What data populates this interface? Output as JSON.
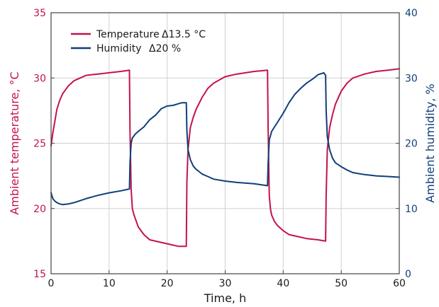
{
  "chart_data": {
    "type": "line",
    "xlabel": "Time, h",
    "ylabel_left": "Ambient temperature, °C",
    "ylabel_right": "Ambient humidity, %",
    "xlim": [
      0,
      60
    ],
    "ylim_left": [
      15,
      35
    ],
    "ylim_right": [
      0,
      40
    ],
    "xticks": [
      "0",
      "10",
      "20",
      "30",
      "40",
      "50",
      "60"
    ],
    "yticks_left": [
      "15",
      "20",
      "25",
      "30",
      "35"
    ],
    "yticks_right": [
      "0",
      "10",
      "20",
      "30",
      "40"
    ],
    "grid": true,
    "legend_position": "top-left",
    "colors": {
      "temperature": "#c4134a",
      "humidity": "#0f3f7a",
      "grid": "#d0d0d0",
      "frame": "#444444"
    },
    "series": [
      {
        "name": "Temperature",
        "delta": "Δ13.5 °C",
        "axis": "left",
        "x": [
          0,
          0.3,
          0.7,
          1,
          1.5,
          2,
          3,
          4,
          5,
          6,
          8,
          10,
          12,
          13.5,
          13.6,
          13.8,
          14,
          14.3,
          14.7,
          15,
          16,
          17,
          18,
          20,
          22,
          23.3,
          23.4,
          23.6,
          24,
          24.5,
          25,
          26,
          27,
          28,
          30,
          32,
          35,
          37.3,
          37.4,
          37.6,
          37.8,
          38,
          38.5,
          39,
          40,
          41,
          42,
          44,
          46,
          47.3,
          47.4,
          47.6,
          48,
          48.5,
          49,
          50,
          51,
          52,
          54,
          56,
          58,
          60
        ],
        "y": [
          24.8,
          25.8,
          26.8,
          27.6,
          28.3,
          28.8,
          29.4,
          29.8,
          30.0,
          30.2,
          30.3,
          30.4,
          30.5,
          30.6,
          26.0,
          21.5,
          20.0,
          19.5,
          19.0,
          18.6,
          18.0,
          17.6,
          17.5,
          17.3,
          17.1,
          17.1,
          22.0,
          24.5,
          26.2,
          27.0,
          27.6,
          28.5,
          29.2,
          29.6,
          30.1,
          30.3,
          30.5,
          30.6,
          26.0,
          21.0,
          20.0,
          19.5,
          19.0,
          18.7,
          18.3,
          18.0,
          17.9,
          17.7,
          17.6,
          17.5,
          21.0,
          24.5,
          26.2,
          27.2,
          28.0,
          29.0,
          29.6,
          30.0,
          30.3,
          30.5,
          30.6,
          30.7
        ]
      },
      {
        "name": "Humidity",
        "delta": "Δ20 %",
        "axis": "right",
        "x": [
          0,
          0.3,
          0.7,
          1,
          1.5,
          2,
          3,
          4,
          6,
          8,
          10,
          12,
          13.5,
          13.6,
          13.8,
          14,
          14.5,
          15,
          16,
          17,
          18,
          19,
          20,
          21,
          22.5,
          23.3,
          23.4,
          23.6,
          24,
          24.5,
          25,
          26,
          27,
          28,
          30,
          32,
          35,
          37.3,
          37.4,
          37.6,
          38,
          38.5,
          39,
          40,
          41,
          42,
          43,
          44,
          45,
          46,
          47,
          47.3,
          47.4,
          47.6,
          48,
          48.5,
          49,
          50,
          51,
          52,
          54,
          56,
          58,
          60
        ],
        "y": [
          12.4,
          11.5,
          11.1,
          10.9,
          10.7,
          10.6,
          10.7,
          10.9,
          11.5,
          12.0,
          12.4,
          12.7,
          13.0,
          17.0,
          20.0,
          20.8,
          21.4,
          21.8,
          22.5,
          23.6,
          24.3,
          25.3,
          25.7,
          25.8,
          26.2,
          26.2,
          22.0,
          19.0,
          17.5,
          16.5,
          16.0,
          15.3,
          14.9,
          14.5,
          14.2,
          14.0,
          13.8,
          13.5,
          17.0,
          20.5,
          21.8,
          22.5,
          23.2,
          24.6,
          26.2,
          27.5,
          28.4,
          29.2,
          29.8,
          30.5,
          30.8,
          30.4,
          25.0,
          21.0,
          19.0,
          17.7,
          17.0,
          16.4,
          15.9,
          15.5,
          15.2,
          15.0,
          14.9,
          14.8
        ]
      }
    ]
  }
}
